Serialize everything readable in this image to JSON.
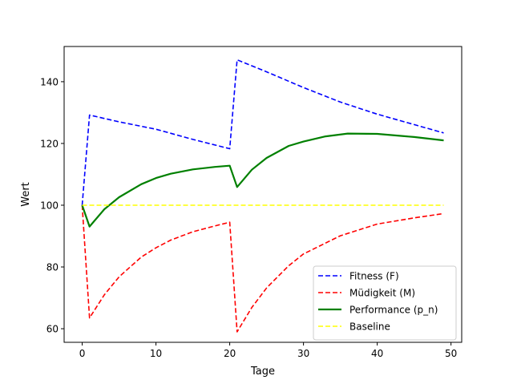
{
  "chart_data": {
    "type": "line",
    "title": "",
    "xlabel": "Tage",
    "ylabel": "Wert",
    "xlim": [
      -2.45,
      51.45
    ],
    "ylim": [
      55.6,
      151.4
    ],
    "xticks": [
      0,
      10,
      20,
      30,
      40,
      50
    ],
    "yticks": [
      60,
      80,
      100,
      120,
      140
    ],
    "grid": false,
    "legend_position": "lower right",
    "series": [
      {
        "name": "Fitness (F)",
        "color": "#0000ff",
        "style": "dashed",
        "x": [
          0,
          1,
          5,
          10,
          15,
          20,
          21,
          25,
          30,
          35,
          40,
          45,
          49
        ],
        "y": [
          100,
          129.2,
          127,
          124.6,
          121.3,
          118.3,
          147.1,
          143.2,
          138.1,
          133.4,
          129.5,
          126.1,
          123.4
        ]
      },
      {
        "name": "Müdigkeit (M)",
        "color": "#ff0000",
        "style": "dashed",
        "x": [
          0,
          1,
          3,
          5,
          8,
          10,
          12,
          15,
          18,
          20,
          21,
          23,
          25,
          28,
          30,
          35,
          40,
          45,
          49
        ],
        "y": [
          100,
          63.5,
          71,
          76.8,
          83.2,
          86.2,
          88.7,
          91.4,
          93.3,
          94.5,
          59,
          66.9,
          73.2,
          80.4,
          84.2,
          90.1,
          93.9,
          95.9,
          97.3
        ]
      },
      {
        "name": "Performance (p_n)",
        "color": "#008000",
        "style": "solid",
        "x": [
          0,
          1,
          3,
          5,
          8,
          10,
          12,
          15,
          18,
          20,
          21,
          23,
          25,
          28,
          30,
          33,
          36,
          40,
          45,
          49
        ],
        "y": [
          100,
          93.1,
          98.7,
          102.6,
          106.8,
          108.8,
          110.2,
          111.6,
          112.4,
          112.8,
          105.9,
          111.5,
          115.3,
          119.2,
          120.6,
          122.3,
          123.2,
          123.1,
          122.1,
          121
        ]
      },
      {
        "name": "Baseline",
        "color": "#ffff00",
        "style": "dashed",
        "x": [
          0,
          49
        ],
        "y": [
          100,
          100
        ]
      }
    ]
  }
}
